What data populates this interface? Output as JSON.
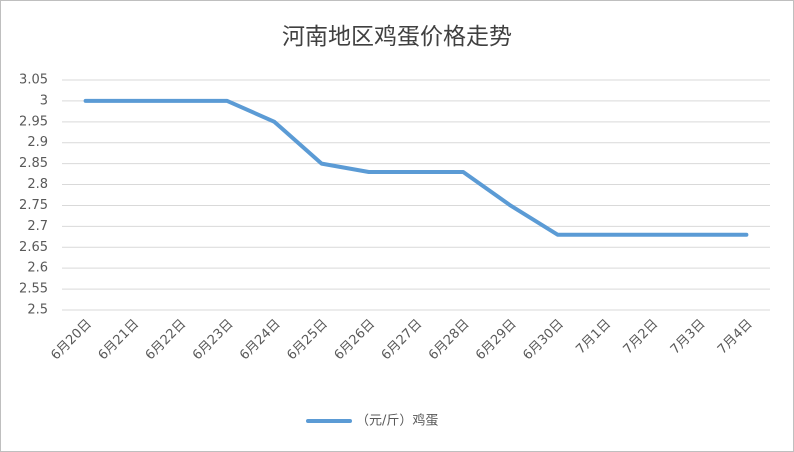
{
  "chart_data": {
    "type": "line",
    "title": "河南地区鸡蛋价格走势",
    "categories": [
      "6月20日",
      "6月21日",
      "6月22日",
      "6月23日",
      "6月24日",
      "6月25日",
      "6月26日",
      "6月27日",
      "6月28日",
      "6月29日",
      "6月30日",
      "7月1日",
      "7月2日",
      "7月3日",
      "7月4日"
    ],
    "series": [
      {
        "name": "（元/斤）鸡蛋",
        "color": "#5b9bd5",
        "values": [
          3,
          3,
          3,
          3,
          2.95,
          2.85,
          2.83,
          2.83,
          2.83,
          2.75,
          2.68,
          2.68,
          2.68,
          2.68,
          2.68
        ]
      }
    ],
    "ylim": [
      2.5,
      3.05
    ],
    "yticks": [
      2.5,
      2.55,
      2.6,
      2.65,
      2.7,
      2.75,
      2.8,
      2.85,
      2.9,
      2.95,
      3,
      3.05
    ],
    "grid": true,
    "legend": "bottom"
  }
}
